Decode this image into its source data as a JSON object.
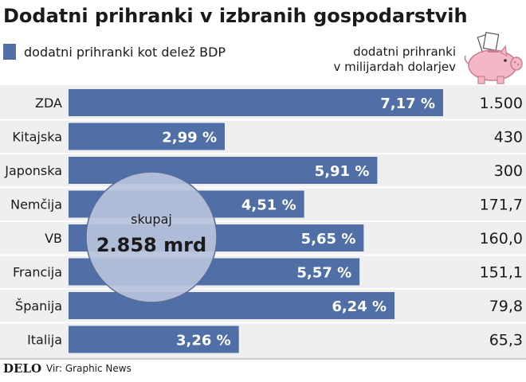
{
  "title": "Dodatni prihranki v izbranih gospodarstvih",
  "legend_label": "dodatni prihranki kot delež BDP",
  "right_header": {
    "line1": "dodatni prihranki",
    "line2": "v milijardah dolarjev"
  },
  "total": {
    "label": "skupaj",
    "value": "2.858 mrd"
  },
  "footer": {
    "logo": "DELO",
    "source": "Vir: Graphic News"
  },
  "colors": {
    "bar": "#4f6fa6",
    "bubble": "#b7c2dc",
    "bubble_stroke": "#5a6d98",
    "piggy": "#f2b8c6"
  },
  "chart_data": {
    "type": "bar",
    "orientation": "horizontal",
    "categories": [
      "ZDA",
      "Kitajska",
      "Japonska",
      "Nemčija",
      "VB",
      "Francija",
      "Španija",
      "Italija"
    ],
    "series": [
      {
        "name": "dodatni prihranki kot delež BDP",
        "values": [
          7.17,
          2.99,
          5.91,
          4.51,
          5.65,
          5.57,
          6.24,
          3.26
        ],
        "labels": [
          "7,17 %",
          "2,99 %",
          "5,91 %",
          "4,51 %",
          "5,65 %",
          "5,57 %",
          "6,24 %",
          "3,26 %"
        ]
      }
    ],
    "right_values": [
      "1.500",
      "430",
      "300",
      "171,7",
      "160,0",
      "151,1",
      "79,8",
      "65,3"
    ],
    "xlim": [
      0,
      7.17
    ]
  }
}
